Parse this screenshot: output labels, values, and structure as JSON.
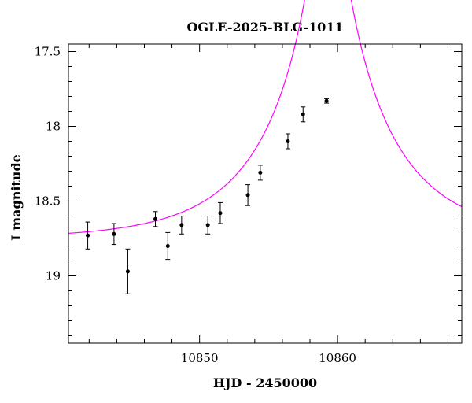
{
  "chart_data": {
    "type": "scatter",
    "title": "OGLE-2025-BLG-1011",
    "xlabel": "HJD - 2450000",
    "ylabel": "I magnitude",
    "xlim": [
      10840.5,
      10869.0
    ],
    "ylim": [
      19.45,
      17.45
    ],
    "y_inverted": true,
    "x_ticks_labeled": [
      10850,
      10860
    ],
    "x_tick_labels": [
      "10850",
      "10860"
    ],
    "y_ticks_labeled": [
      17.5,
      18,
      18.5,
      19
    ],
    "y_tick_labels": [
      "17.5",
      "18",
      "18.5",
      "19"
    ],
    "grid": false,
    "colors": {
      "data": "#000000",
      "model": "#ff00ff"
    },
    "series": [
      {
        "type": "errorbar",
        "points": [
          {
            "x": 10841.9,
            "y": 18.73,
            "err": 0.09
          },
          {
            "x": 10843.8,
            "y": 18.72,
            "err": 0.07
          },
          {
            "x": 10844.8,
            "y": 18.97,
            "err": 0.15
          },
          {
            "x": 10846.8,
            "y": 18.62,
            "err": 0.05
          },
          {
            "x": 10847.7,
            "y": 18.8,
            "err": 0.09
          },
          {
            "x": 10848.7,
            "y": 18.66,
            "err": 0.06
          },
          {
            "x": 10850.6,
            "y": 18.66,
            "err": 0.06
          },
          {
            "x": 10851.5,
            "y": 18.58,
            "err": 0.07
          },
          {
            "x": 10853.5,
            "y": 18.46,
            "err": 0.07
          },
          {
            "x": 10854.4,
            "y": 18.31,
            "err": 0.05
          },
          {
            "x": 10856.4,
            "y": 18.1,
            "err": 0.05
          },
          {
            "x": 10857.5,
            "y": 17.92,
            "err": 0.05
          },
          {
            "x": 10859.2,
            "y": 17.83,
            "err": 0.015
          }
        ]
      },
      {
        "type": "line",
        "model": {
          "baseline": 18.755,
          "t0": 10859.3,
          "tE": 8.0,
          "u0": 0.1
        }
      }
    ]
  }
}
